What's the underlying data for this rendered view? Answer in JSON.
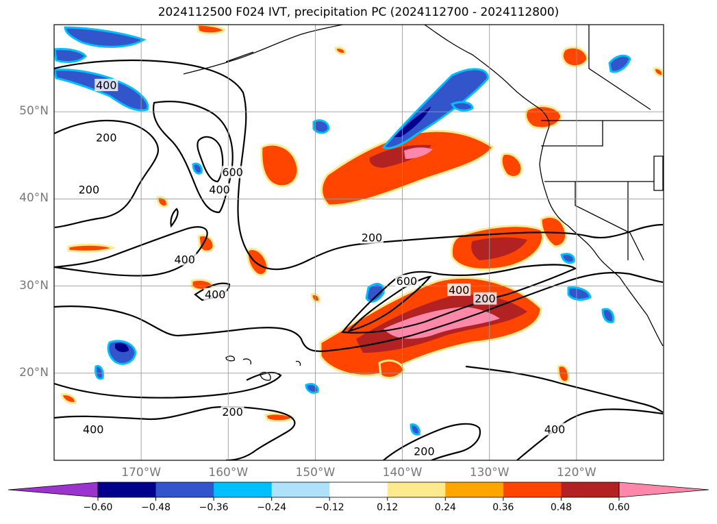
{
  "title": "2024112500 F024 IVT, precipitation PC (2024112700 - 2024112800)",
  "map": {
    "lon_range": [
      -180,
      -110
    ],
    "lat_range": [
      10,
      60
    ],
    "lat_ticks": [
      {
        "value": 50,
        "label": "50°N"
      },
      {
        "value": 40,
        "label": "40°N"
      },
      {
        "value": 30,
        "label": "30°N"
      },
      {
        "value": 20,
        "label": "20°N"
      }
    ],
    "lon_ticks": [
      {
        "value": -170,
        "label": "170°W"
      },
      {
        "value": -160,
        "label": "160°W"
      },
      {
        "value": -150,
        "label": "150°W"
      },
      {
        "value": -140,
        "label": "140°W"
      },
      {
        "value": -130,
        "label": "130°W"
      },
      {
        "value": -120,
        "label": "120°W"
      }
    ],
    "grid": true,
    "ivt_contour_labels": [
      {
        "text": "400",
        "lon": -174,
        "lat": 53
      },
      {
        "text": "200",
        "lon": -174,
        "lat": 47
      },
      {
        "text": "200",
        "lon": -176,
        "lat": 41
      },
      {
        "text": "600",
        "lon": -159.5,
        "lat": 43
      },
      {
        "text": "400",
        "lon": -161,
        "lat": 41
      },
      {
        "text": "400",
        "lon": -165,
        "lat": 33
      },
      {
        "text": "400",
        "lon": -161.5,
        "lat": 29
      },
      {
        "text": "200",
        "lon": -143.5,
        "lat": 35.5
      },
      {
        "text": "600",
        "lon": -139.5,
        "lat": 30.5
      },
      {
        "text": "400",
        "lon": -133.5,
        "lat": 29.5
      },
      {
        "text": "200",
        "lon": -130.5,
        "lat": 28.5
      },
      {
        "text": "200",
        "lon": -159.5,
        "lat": 15.5
      },
      {
        "text": "400",
        "lon": -175.5,
        "lat": 13.5
      },
      {
        "text": "400",
        "lon": -122.5,
        "lat": 13.5
      },
      {
        "text": "200",
        "lon": -137.5,
        "lat": 11
      }
    ]
  },
  "colorbar": {
    "colors": [
      "#9b33cf",
      "#00008c",
      "#3355cc",
      "#00bfff",
      "#aee2fa",
      "#ffffff",
      "#fde98e",
      "#ffa500",
      "#ff4500",
      "#b22222",
      "#ff88aa"
    ],
    "ticks": [
      "−0.60",
      "−0.48",
      "−0.36",
      "−0.24",
      "−0.12",
      "0.12",
      "0.24",
      "0.36",
      "0.48",
      "0.60"
    ]
  }
}
